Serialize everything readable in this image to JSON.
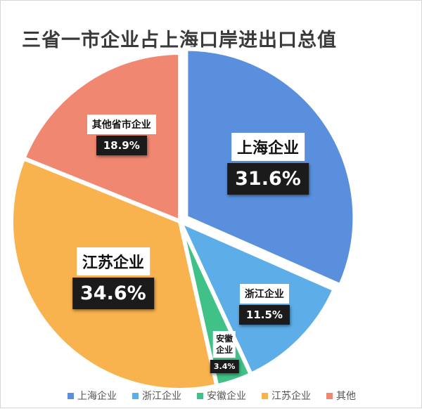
{
  "chart_data": {
    "type": "pie",
    "title": "三省一市企业占上海口岸进出口总值",
    "slices": [
      {
        "label": "上海企业",
        "value": 31.6,
        "value_label": "31.6%",
        "color": "#5a8fde",
        "label_size": "large"
      },
      {
        "label": "浙江企业",
        "value": 11.5,
        "value_label": "11.5%",
        "color": "#5dade8",
        "label_size": "medium"
      },
      {
        "label": "安徽\n企业",
        "value": 3.4,
        "value_label": "3.4%",
        "color": "#3fc187",
        "label_size": "small"
      },
      {
        "label": "江苏企业",
        "value": 34.6,
        "value_label": "34.6%",
        "color": "#f8b24e",
        "label_size": "large"
      },
      {
        "label": "其他省市企业",
        "value": 18.9,
        "value_label": "18.9%",
        "color": "#f08771",
        "label_size": "medium"
      }
    ],
    "legend": {
      "position": "bottom",
      "entries": [
        "上海企业",
        "浙江企业",
        "安徽企业",
        "江苏企业",
        "其他"
      ]
    }
  }
}
